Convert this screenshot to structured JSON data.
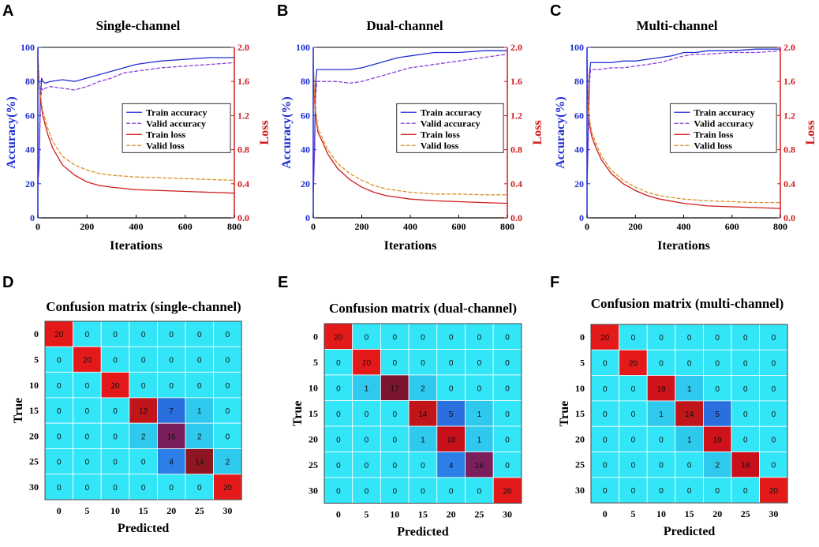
{
  "chart_data": [
    {
      "panel": "A",
      "type": "line",
      "title": "Single-channel",
      "xlabel": "Iterations",
      "ylabel": "Accuracy(%)",
      "y2label": "Loss",
      "xlim": [
        0,
        800
      ],
      "ylim": [
        0,
        100
      ],
      "y2lim": [
        0.0,
        2.0
      ],
      "xticks": [
        "0",
        "200",
        "400",
        "600",
        "800"
      ],
      "yticks": [
        "0",
        "20",
        "40",
        "60",
        "80",
        "100"
      ],
      "y2ticks": [
        "0.0",
        "0.4",
        "0.8",
        "1.2",
        "1.6",
        "2.0"
      ],
      "legend": [
        "Train accuracy",
        "Valid accuracy",
        "Train loss",
        "Valid loss"
      ],
      "series": [
        {
          "name": "Train accuracy",
          "axis": "left",
          "color": "#1f2fd0",
          "x": [
            0,
            5,
            10,
            15,
            20,
            30,
            50,
            100,
            150,
            200,
            250,
            300,
            350,
            400,
            450,
            500,
            600,
            700,
            800
          ],
          "values": [
            20,
            35,
            70,
            82,
            80,
            79,
            80,
            81,
            80,
            82,
            84,
            86,
            88,
            90,
            91,
            92,
            93,
            94,
            94
          ]
        },
        {
          "name": "Valid accuracy",
          "axis": "left",
          "color": "#8a3fd8",
          "x": [
            0,
            5,
            10,
            15,
            20,
            30,
            50,
            100,
            150,
            200,
            250,
            300,
            350,
            400,
            450,
            500,
            600,
            700,
            800
          ],
          "values": [
            20,
            30,
            66,
            76,
            75,
            76,
            77,
            76,
            75,
            77,
            80,
            82,
            85,
            86,
            87,
            88,
            89,
            90,
            91
          ]
        },
        {
          "name": "Train loss",
          "axis": "right",
          "color": "#d01c1c",
          "x": [
            0,
            5,
            10,
            20,
            40,
            60,
            100,
            150,
            200,
            250,
            300,
            400,
            500,
            600,
            700,
            800
          ],
          "values": [
            1.9,
            1.6,
            1.4,
            1.2,
            0.98,
            0.82,
            0.62,
            0.5,
            0.42,
            0.38,
            0.36,
            0.33,
            0.32,
            0.31,
            0.3,
            0.29
          ]
        },
        {
          "name": "Valid loss",
          "axis": "right",
          "color": "#d9902a",
          "x": [
            0,
            5,
            10,
            20,
            40,
            60,
            100,
            150,
            200,
            250,
            300,
            400,
            500,
            600,
            700,
            800
          ],
          "values": [
            1.9,
            1.6,
            1.45,
            1.25,
            1.05,
            0.9,
            0.72,
            0.62,
            0.56,
            0.52,
            0.5,
            0.48,
            0.47,
            0.46,
            0.45,
            0.44
          ]
        }
      ]
    },
    {
      "panel": "B",
      "type": "line",
      "title": "Dual-channel",
      "xlabel": "Iterations",
      "ylabel": "Accuracy(%)",
      "y2label": "Loss",
      "xlim": [
        0,
        800
      ],
      "ylim": [
        0,
        100
      ],
      "y2lim": [
        0.0,
        2.0
      ],
      "xticks": [
        "0",
        "200",
        "400",
        "600",
        "800"
      ],
      "yticks": [
        "0",
        "20",
        "40",
        "60",
        "80",
        "100"
      ],
      "y2ticks": [
        "0.0",
        "0.4",
        "0.8",
        "1.2",
        "1.6",
        "2.0"
      ],
      "legend": [
        "Train accuracy",
        "Valid accuracy",
        "Train loss",
        "Valid loss"
      ],
      "series": [
        {
          "name": "Train accuracy",
          "axis": "left",
          "color": "#1f2fd0",
          "x": [
            0,
            5,
            10,
            15,
            20,
            30,
            50,
            100,
            150,
            200,
            250,
            300,
            350,
            400,
            450,
            500,
            600,
            700,
            800
          ],
          "values": [
            15,
            40,
            80,
            87,
            87,
            87,
            87,
            87,
            87,
            88,
            90,
            92,
            94,
            95,
            96,
            97,
            97,
            98,
            98
          ]
        },
        {
          "name": "Valid accuracy",
          "axis": "left",
          "color": "#8a3fd8",
          "x": [
            0,
            5,
            10,
            15,
            20,
            30,
            50,
            100,
            150,
            200,
            250,
            300,
            350,
            400,
            450,
            500,
            600,
            700,
            800
          ],
          "values": [
            15,
            35,
            72,
            80,
            80,
            80,
            80,
            80,
            79,
            80,
            82,
            84,
            86,
            88,
            89,
            90,
            92,
            94,
            96
          ]
        },
        {
          "name": "Train loss",
          "axis": "right",
          "color": "#d01c1c",
          "x": [
            0,
            5,
            10,
            20,
            40,
            60,
            100,
            150,
            200,
            250,
            300,
            400,
            500,
            600,
            700,
            800
          ],
          "values": [
            1.8,
            1.4,
            1.2,
            1.0,
            0.88,
            0.75,
            0.58,
            0.45,
            0.36,
            0.3,
            0.26,
            0.22,
            0.2,
            0.19,
            0.18,
            0.17
          ]
        },
        {
          "name": "Valid loss",
          "axis": "right",
          "color": "#d9902a",
          "x": [
            0,
            5,
            10,
            20,
            40,
            60,
            100,
            150,
            200,
            250,
            300,
            400,
            500,
            600,
            700,
            800
          ],
          "values": [
            1.8,
            1.45,
            1.25,
            1.05,
            0.92,
            0.8,
            0.64,
            0.52,
            0.44,
            0.38,
            0.34,
            0.3,
            0.28,
            0.28,
            0.27,
            0.27
          ]
        }
      ]
    },
    {
      "panel": "C",
      "type": "line",
      "title": "Multi-channel",
      "xlabel": "Iterations",
      "ylabel": "Accuracy(%)",
      "y2label": "Loss",
      "xlim": [
        0,
        800
      ],
      "ylim": [
        0,
        100
      ],
      "y2lim": [
        0.0,
        2.0
      ],
      "xticks": [
        "0",
        "200",
        "400",
        "600",
        "800"
      ],
      "yticks": [
        "0",
        "20",
        "40",
        "60",
        "80",
        "100"
      ],
      "y2ticks": [
        "0.0",
        "0.4",
        "0.8",
        "1.2",
        "1.6",
        "2.0"
      ],
      "legend": [
        "Train accuracy",
        "Valid accuracy",
        "Train loss",
        "Valid loss"
      ],
      "series": [
        {
          "name": "Train accuracy",
          "axis": "left",
          "color": "#1f2fd0",
          "x": [
            0,
            5,
            10,
            15,
            20,
            30,
            50,
            100,
            150,
            200,
            250,
            300,
            350,
            400,
            450,
            500,
            600,
            700,
            800
          ],
          "values": [
            20,
            50,
            85,
            91,
            91,
            91,
            91,
            91,
            92,
            92,
            93,
            94,
            95,
            97,
            97,
            98,
            98,
            99,
            99
          ]
        },
        {
          "name": "Valid accuracy",
          "axis": "left",
          "color": "#8a3fd8",
          "x": [
            0,
            5,
            10,
            15,
            20,
            30,
            50,
            100,
            150,
            200,
            250,
            300,
            350,
            400,
            450,
            500,
            600,
            700,
            800
          ],
          "values": [
            20,
            45,
            80,
            87,
            87,
            87,
            87,
            88,
            88,
            89,
            90,
            91,
            93,
            95,
            96,
            96,
            97,
            97,
            98
          ]
        },
        {
          "name": "Train loss",
          "axis": "right",
          "color": "#d01c1c",
          "x": [
            0,
            5,
            10,
            20,
            40,
            60,
            100,
            150,
            200,
            250,
            300,
            400,
            500,
            600,
            700,
            800
          ],
          "values": [
            1.85,
            1.3,
            1.1,
            0.95,
            0.8,
            0.68,
            0.52,
            0.4,
            0.32,
            0.26,
            0.22,
            0.17,
            0.14,
            0.13,
            0.12,
            0.11
          ]
        },
        {
          "name": "Valid loss",
          "axis": "right",
          "color": "#d9902a",
          "x": [
            0,
            5,
            10,
            20,
            40,
            60,
            100,
            150,
            200,
            250,
            300,
            400,
            500,
            600,
            700,
            800
          ],
          "values": [
            1.85,
            1.35,
            1.15,
            1.0,
            0.85,
            0.72,
            0.56,
            0.44,
            0.36,
            0.3,
            0.26,
            0.22,
            0.2,
            0.19,
            0.18,
            0.18
          ]
        }
      ]
    },
    {
      "panel": "D",
      "type": "heatmap",
      "title": "Confusion matrix (single-channel)",
      "xlabel": "Predicted",
      "ylabel": "True",
      "categories": [
        "0",
        "5",
        "10",
        "15",
        "20",
        "25",
        "30"
      ],
      "matrix": [
        [
          20,
          0,
          0,
          0,
          0,
          0,
          0
        ],
        [
          0,
          20,
          0,
          0,
          0,
          0,
          0
        ],
        [
          0,
          0,
          20,
          0,
          0,
          0,
          0
        ],
        [
          0,
          0,
          0,
          12,
          7,
          1,
          0
        ],
        [
          0,
          0,
          0,
          2,
          16,
          2,
          0
        ],
        [
          0,
          0,
          0,
          0,
          4,
          14,
          2
        ],
        [
          0,
          0,
          0,
          0,
          0,
          0,
          20
        ]
      ]
    },
    {
      "panel": "E",
      "type": "heatmap",
      "title": "Confusion matrix (dual-channel)",
      "xlabel": "Predicted",
      "ylabel": "True",
      "categories": [
        "0",
        "5",
        "10",
        "15",
        "20",
        "25",
        "30"
      ],
      "matrix": [
        [
          20,
          0,
          0,
          0,
          0,
          0,
          0
        ],
        [
          0,
          20,
          0,
          0,
          0,
          0,
          0
        ],
        [
          0,
          1,
          17,
          2,
          0,
          0,
          0
        ],
        [
          0,
          0,
          0,
          14,
          5,
          1,
          0
        ],
        [
          0,
          0,
          0,
          1,
          18,
          1,
          0
        ],
        [
          0,
          0,
          0,
          0,
          4,
          16,
          0
        ],
        [
          0,
          0,
          0,
          0,
          0,
          0,
          20
        ]
      ]
    },
    {
      "panel": "F",
      "type": "heatmap",
      "title": "Confusion matrix (multi-channel)",
      "xlabel": "Predicted",
      "ylabel": "True",
      "categories": [
        "0",
        "5",
        "10",
        "15",
        "20",
        "25",
        "30"
      ],
      "matrix": [
        [
          20,
          0,
          0,
          0,
          0,
          0,
          0
        ],
        [
          0,
          20,
          0,
          0,
          0,
          0,
          0
        ],
        [
          0,
          0,
          19,
          1,
          0,
          0,
          0
        ],
        [
          0,
          0,
          1,
          14,
          5,
          0,
          0
        ],
        [
          0,
          0,
          0,
          1,
          19,
          0,
          0
        ],
        [
          0,
          0,
          0,
          0,
          2,
          18,
          0
        ],
        [
          0,
          0,
          0,
          0,
          0,
          0,
          20
        ]
      ]
    }
  ],
  "colors": {
    "accuracy_axis": "#1f2fd0",
    "loss_axis": "#d01c1c",
    "grid_line": "#ffffff"
  }
}
